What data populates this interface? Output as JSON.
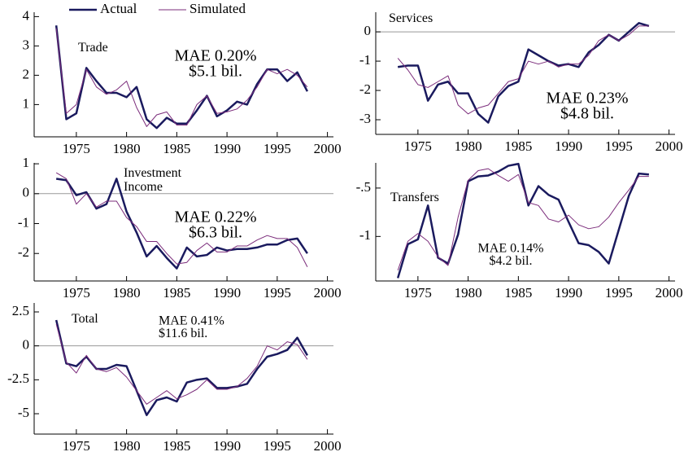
{
  "chart_data": [
    {
      "type": "line",
      "title": "Trade",
      "annotations": [
        "MAE 0.20%",
        "$5.1 bil."
      ],
      "legend": "top-left",
      "zero_line": false,
      "x": [
        1973,
        1974,
        1975,
        1976,
        1977,
        1978,
        1979,
        1980,
        1981,
        1982,
        1983,
        1984,
        1985,
        1986,
        1987,
        1988,
        1989,
        1990,
        1991,
        1992,
        1993,
        1994,
        1995,
        1996,
        1997,
        1998
      ],
      "series": [
        {
          "name": "Actual",
          "color": "#1a1a5e",
          "values": [
            3.7,
            0.5,
            0.7,
            2.25,
            1.8,
            1.4,
            1.4,
            1.25,
            1.6,
            0.5,
            0.2,
            0.55,
            0.35,
            0.35,
            0.8,
            1.3,
            0.6,
            0.8,
            1.1,
            1.0,
            1.7,
            2.2,
            2.2,
            1.8,
            2.1,
            1.45
          ]
        },
        {
          "name": "Simulated",
          "color": "#7b2c7b",
          "values": [
            3.6,
            0.7,
            1.0,
            2.2,
            1.6,
            1.35,
            1.5,
            1.8,
            0.9,
            0.25,
            0.65,
            0.75,
            0.3,
            0.3,
            1.0,
            1.3,
            0.7,
            0.75,
            0.85,
            1.15,
            1.6,
            2.2,
            2.05,
            2.2,
            2.0,
            1.6
          ]
        }
      ],
      "xlim": [
        1970.8,
        2000.6
      ],
      "xticks": [
        1975,
        1980,
        1985,
        1990,
        1995,
        2000
      ],
      "ylim": [
        -0.1,
        4.15
      ],
      "yticks": [
        1,
        2,
        3,
        4
      ]
    },
    {
      "type": "line",
      "title": "Services",
      "annotations": [
        "MAE 0.23%",
        "$4.8 bil."
      ],
      "zero_line": true,
      "x": [
        1973,
        1974,
        1975,
        1976,
        1977,
        1978,
        1979,
        1980,
        1981,
        1982,
        1983,
        1984,
        1985,
        1986,
        1987,
        1988,
        1989,
        1990,
        1991,
        1992,
        1993,
        1994,
        1995,
        1996,
        1997,
        1998
      ],
      "series": [
        {
          "name": "Actual",
          "color": "#1a1a5e",
          "values": [
            -1.2,
            -1.15,
            -1.15,
            -2.35,
            -1.8,
            -1.7,
            -2.1,
            -2.1,
            -2.8,
            -3.1,
            -2.2,
            -1.85,
            -1.7,
            -0.6,
            -0.8,
            -1.0,
            -1.15,
            -1.1,
            -1.2,
            -0.7,
            -0.45,
            -0.1,
            -0.3,
            0.0,
            0.3,
            0.2
          ]
        },
        {
          "name": "Simulated",
          "color": "#7b2c7b",
          "values": [
            -0.9,
            -1.3,
            -1.8,
            -1.9,
            -1.7,
            -1.5,
            -2.5,
            -2.8,
            -2.6,
            -2.5,
            -2.1,
            -1.7,
            -1.6,
            -1.0,
            -1.1,
            -1.0,
            -1.2,
            -1.1,
            -1.1,
            -0.8,
            -0.3,
            -0.1,
            -0.3,
            -0.1,
            0.2,
            0.2
          ]
        }
      ],
      "xlim": [
        1970.8,
        2000.6
      ],
      "xticks": [
        1975,
        1980,
        1985,
        1990,
        1995,
        2000
      ],
      "ylim": [
        -3.5,
        0.67
      ],
      "yticks": [
        0,
        -1,
        -2,
        -3
      ]
    },
    {
      "type": "line",
      "title": "Investment Income",
      "annotations": [
        "MAE 0.22%",
        "$6.3 bil."
      ],
      "zero_line": true,
      "x": [
        1973,
        1974,
        1975,
        1976,
        1977,
        1978,
        1979,
        1980,
        1981,
        1982,
        1983,
        1984,
        1985,
        1986,
        1987,
        1988,
        1989,
        1990,
        1991,
        1992,
        1993,
        1994,
        1995,
        1996,
        1997,
        1998
      ],
      "series": [
        {
          "name": "Actual",
          "color": "#1a1a5e",
          "values": [
            0.5,
            0.45,
            -0.05,
            0.05,
            -0.5,
            -0.35,
            0.5,
            -0.6,
            -1.3,
            -2.1,
            -1.75,
            -2.15,
            -2.5,
            -1.8,
            -2.1,
            -2.05,
            -1.8,
            -1.9,
            -1.85,
            -1.85,
            -1.8,
            -1.7,
            -1.7,
            -1.55,
            -1.5,
            -2.0
          ]
        },
        {
          "name": "Simulated",
          "color": "#7b2c7b",
          "values": [
            0.7,
            0.5,
            -0.35,
            0.0,
            -0.45,
            -0.25,
            -0.25,
            -0.8,
            -1.1,
            -1.6,
            -1.6,
            -2.0,
            -2.35,
            -2.3,
            -1.9,
            -1.65,
            -1.95,
            -1.95,
            -1.75,
            -1.75,
            -1.55,
            -1.4,
            -1.5,
            -1.5,
            -1.8,
            -2.45
          ]
        }
      ],
      "xlim": [
        1970.8,
        2000.6
      ],
      "xticks": [
        1975,
        1980,
        1985,
        1990,
        1995,
        2000
      ],
      "ylim": [
        -2.92,
        1.03
      ],
      "yticks": [
        1,
        0,
        -1,
        -2
      ]
    },
    {
      "type": "line",
      "title": "Transfers",
      "annotations": [
        "MAE 0.14%",
        "$4.2 bil."
      ],
      "zero_line": false,
      "x": [
        1973,
        1974,
        1975,
        1976,
        1977,
        1978,
        1979,
        1980,
        1981,
        1982,
        1983,
        1984,
        1985,
        1986,
        1987,
        1988,
        1989,
        1990,
        1991,
        1992,
        1993,
        1994,
        1995,
        1996,
        1997,
        1998
      ],
      "series": [
        {
          "name": "Actual",
          "color": "#1a1a5e",
          "values": [
            -1.43,
            -1.08,
            -1.03,
            -0.68,
            -1.22,
            -1.28,
            -0.98,
            -0.43,
            -0.38,
            -0.37,
            -0.33,
            -0.27,
            -0.25,
            -0.68,
            -0.48,
            -0.57,
            -0.62,
            -0.85,
            -1.07,
            -1.09,
            -1.16,
            -1.28,
            -0.93,
            -0.58,
            -0.35,
            -0.36
          ]
        },
        {
          "name": "Simulated",
          "color": "#7b2c7b",
          "values": [
            -1.35,
            -1.05,
            -0.97,
            -1.05,
            -1.21,
            -1.3,
            -0.8,
            -0.42,
            -0.32,
            -0.3,
            -0.37,
            -0.43,
            -0.36,
            -0.65,
            -0.68,
            -0.82,
            -0.85,
            -0.78,
            -0.88,
            -0.92,
            -0.9,
            -0.8,
            -0.65,
            -0.52,
            -0.38,
            -0.38
          ]
        }
      ],
      "xlim": [
        1970.8,
        2000.6
      ],
      "xticks": [
        1975,
        1980,
        1985,
        1990,
        1995,
        2000
      ],
      "ylim": [
        -1.46,
        -0.24
      ],
      "yticks": [
        {
          "value": -0.5,
          "label": "-.5"
        },
        -1
      ]
    },
    {
      "type": "line",
      "title": "Total",
      "annotations": [
        "MAE 0.41%",
        "$11.6 bil."
      ],
      "zero_line": true,
      "x": [
        1973,
        1974,
        1975,
        1976,
        1977,
        1978,
        1979,
        1980,
        1981,
        1982,
        1983,
        1984,
        1985,
        1986,
        1987,
        1988,
        1989,
        1990,
        1991,
        1992,
        1993,
        1994,
        1995,
        1996,
        1997,
        1998
      ],
      "series": [
        {
          "name": "Actual",
          "color": "#1a1a5e",
          "values": [
            1.9,
            -1.3,
            -1.5,
            -0.8,
            -1.7,
            -1.7,
            -1.4,
            -1.5,
            -3.3,
            -5.1,
            -4.0,
            -3.8,
            -4.1,
            -2.7,
            -2.5,
            -2.4,
            -3.1,
            -3.1,
            -3.0,
            -2.8,
            -1.7,
            -0.8,
            -0.6,
            -0.3,
            0.6,
            -0.7
          ]
        },
        {
          "name": "Simulated",
          "color": "#7b2c7b",
          "values": [
            1.6,
            -1.2,
            -2.0,
            -0.7,
            -1.7,
            -1.9,
            -1.6,
            -2.3,
            -3.3,
            -4.3,
            -3.8,
            -3.3,
            -3.9,
            -3.6,
            -3.2,
            -2.5,
            -3.2,
            -3.2,
            -3.0,
            -2.4,
            -1.5,
            0.0,
            -0.3,
            0.3,
            0.1,
            -1.0
          ]
        }
      ],
      "xlim": [
        1970.8,
        2000.6
      ],
      "xticks": [
        1975,
        1980,
        1985,
        1990,
        1995,
        2000
      ],
      "ylim": [
        -6.5,
        3.16
      ],
      "yticks": [
        2.5,
        0,
        -2.5,
        -5
      ]
    }
  ]
}
